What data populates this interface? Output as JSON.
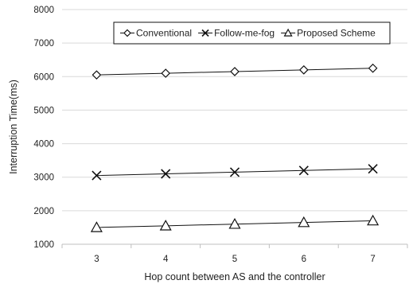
{
  "chart_data": {
    "type": "line",
    "title": "",
    "xlabel": "Hop count between AS and the controller",
    "ylabel": "Interruption Time(ms)",
    "categories": [
      "3",
      "4",
      "5",
      "6",
      "7"
    ],
    "ylim": [
      1000,
      8000
    ],
    "yticks": [
      1000,
      2000,
      3000,
      4000,
      5000,
      6000,
      7000,
      8000
    ],
    "grid": "horizontal",
    "legend_position": "top-right",
    "series": [
      {
        "name": "Conventional",
        "marker": "diamond",
        "values": [
          6050,
          6100,
          6150,
          6200,
          6250
        ]
      },
      {
        "name": "Follow-me-fog",
        "marker": "x",
        "values": [
          3050,
          3100,
          3150,
          3200,
          3250
        ]
      },
      {
        "name": "Proposed Scheme",
        "marker": "triangle",
        "values": [
          1500,
          1550,
          1600,
          1650,
          1700
        ]
      }
    ]
  }
}
